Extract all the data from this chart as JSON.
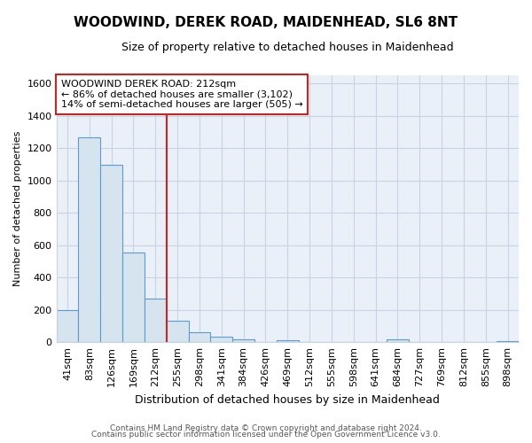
{
  "title": "WOODWIND, DEREK ROAD, MAIDENHEAD, SL6 8NT",
  "subtitle": "Size of property relative to detached houses in Maidenhead",
  "xlabel": "Distribution of detached houses by size in Maidenhead",
  "ylabel": "Number of detached properties",
  "footer1": "Contains HM Land Registry data © Crown copyright and database right 2024.",
  "footer2": "Contains public sector information licensed under the Open Government Licence v3.0.",
  "categories": [
    "41sqm",
    "83sqm",
    "126sqm",
    "169sqm",
    "212sqm",
    "255sqm",
    "298sqm",
    "341sqm",
    "384sqm",
    "426sqm",
    "469sqm",
    "512sqm",
    "555sqm",
    "598sqm",
    "641sqm",
    "684sqm",
    "727sqm",
    "769sqm",
    "812sqm",
    "855sqm",
    "898sqm"
  ],
  "values": [
    197,
    1270,
    1097,
    553,
    270,
    133,
    62,
    33,
    18,
    0,
    12,
    0,
    0,
    0,
    0,
    15,
    0,
    0,
    0,
    0,
    8
  ],
  "bar_color": "#d6e4f0",
  "bar_edge_color": "#5b9bd5",
  "red_line_index": 4,
  "red_line_color": "#cc2222",
  "ylim": [
    0,
    1650
  ],
  "yticks": [
    0,
    200,
    400,
    600,
    800,
    1000,
    1200,
    1400,
    1600
  ],
  "annotation_text": "WOODWIND DEREK ROAD: 212sqm\n← 86% of detached houses are smaller (3,102)\n14% of semi-detached houses are larger (505) →",
  "annotation_box_color": "#ffffff",
  "annotation_box_edge": "#cc2222",
  "bg_color": "#ffffff",
  "plot_bg_color": "#eaf0f8",
  "grid_color": "#c8d4e4",
  "title_fontsize": 11,
  "subtitle_fontsize": 9,
  "xlabel_fontsize": 9,
  "ylabel_fontsize": 8,
  "tick_fontsize": 8,
  "annotation_fontsize": 8
}
